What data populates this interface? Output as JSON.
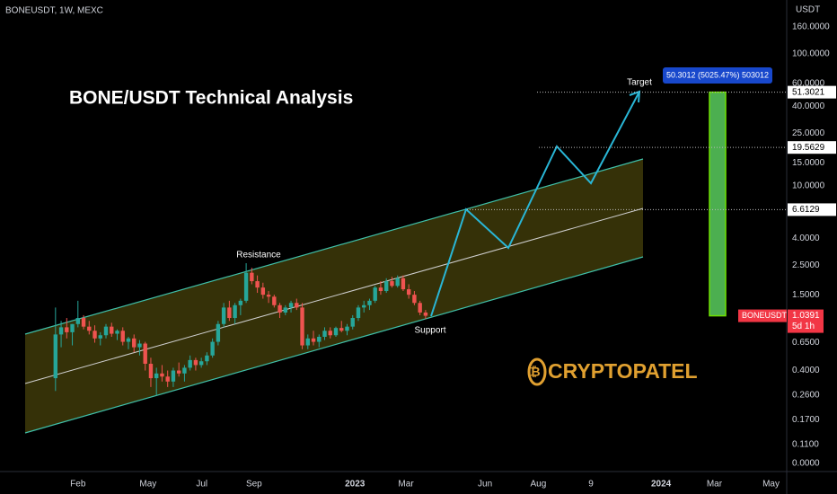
{
  "chart_data": {
    "type": "candlestick",
    "header": "BONEUSDT, 1W, MEXC",
    "title": "BONE/USDT Technical Analysis",
    "currency": "USDT",
    "log_scale": true,
    "up_color": "#26a69a",
    "down_color": "#ef5350",
    "ylim": [
      0.0687,
      256
    ],
    "xlim": [
      -9.9,
      130.4
    ],
    "yticks": [
      {
        "value": 160,
        "label": "160.0000"
      },
      {
        "value": 100,
        "label": "100.0000"
      },
      {
        "value": 60,
        "label": "60.0000"
      },
      {
        "value": 40,
        "label": "40.0000"
      },
      {
        "value": 25,
        "label": "25.0000"
      },
      {
        "value": 15,
        "label": "15.0000"
      },
      {
        "value": 10,
        "label": "10.0000"
      },
      {
        "value": 4,
        "label": "4.0000"
      },
      {
        "value": 2.5,
        "label": "2.5000"
      },
      {
        "value": 1.5,
        "label": "1.5000"
      },
      {
        "value": 0.65,
        "label": "0.6500"
      },
      {
        "value": 0.4,
        "label": "0.4000"
      },
      {
        "value": 0.26,
        "label": "0.2600"
      },
      {
        "value": 0.17,
        "label": "0.1700"
      },
      {
        "value": 0.11,
        "label": "0.1100"
      }
    ],
    "axis_floor_label": "0.0000",
    "xticks": [
      {
        "value": 4.0,
        "label": "Feb"
      },
      {
        "value": 16.5,
        "label": "May"
      },
      {
        "value": 26.1,
        "label": "Jul"
      },
      {
        "value": 35.4,
        "label": "Sep"
      },
      {
        "value": 53.4,
        "label": "2023"
      },
      {
        "value": 62.5,
        "label": "Mar"
      },
      {
        "value": 76.6,
        "label": "Jun"
      },
      {
        "value": 86.1,
        "label": "Aug"
      },
      {
        "value": 95.5,
        "label": "9"
      },
      {
        "value": 108,
        "label": "2024"
      },
      {
        "value": 117.5,
        "label": "Mar"
      },
      {
        "value": 127.6,
        "label": "May"
      }
    ],
    "ohlc": [
      [
        0.35,
        1.2,
        0.28,
        0.75
      ],
      [
        0.75,
        0.95,
        0.6,
        0.85
      ],
      [
        0.85,
        1.0,
        0.7,
        0.78
      ],
      [
        0.78,
        0.9,
        0.62,
        0.9
      ],
      [
        0.9,
        1.35,
        0.85,
        1.0
      ],
      [
        1.0,
        1.05,
        0.82,
        0.86
      ],
      [
        0.86,
        0.95,
        0.75,
        0.8
      ],
      [
        0.8,
        0.88,
        0.65,
        0.7
      ],
      [
        0.7,
        0.78,
        0.62,
        0.74
      ],
      [
        0.74,
        0.9,
        0.7,
        0.86
      ],
      [
        0.86,
        0.92,
        0.72,
        0.76
      ],
      [
        0.76,
        0.82,
        0.68,
        0.8
      ],
      [
        0.8,
        0.85,
        0.62,
        0.66
      ],
      [
        0.66,
        0.72,
        0.58,
        0.7
      ],
      [
        0.7,
        0.75,
        0.55,
        0.6
      ],
      [
        0.6,
        0.68,
        0.52,
        0.64
      ],
      [
        0.64,
        0.66,
        0.4,
        0.45
      ],
      [
        0.45,
        0.5,
        0.3,
        0.35
      ],
      [
        0.35,
        0.42,
        0.26,
        0.38
      ],
      [
        0.38,
        0.44,
        0.33,
        0.36
      ],
      [
        0.36,
        0.4,
        0.3,
        0.33
      ],
      [
        0.33,
        0.42,
        0.3,
        0.4
      ],
      [
        0.4,
        0.46,
        0.36,
        0.38
      ],
      [
        0.38,
        0.44,
        0.33,
        0.42
      ],
      [
        0.42,
        0.52,
        0.4,
        0.48
      ],
      [
        0.48,
        0.5,
        0.4,
        0.44
      ],
      [
        0.44,
        0.5,
        0.42,
        0.47
      ],
      [
        0.47,
        0.55,
        0.44,
        0.52
      ],
      [
        0.52,
        0.7,
        0.5,
        0.66
      ],
      [
        0.66,
        0.95,
        0.62,
        0.9
      ],
      [
        0.9,
        1.3,
        0.85,
        1.2
      ],
      [
        1.2,
        1.35,
        0.95,
        1.0
      ],
      [
        1.0,
        1.3,
        0.9,
        1.25
      ],
      [
        1.25,
        1.4,
        1.05,
        1.35
      ],
      [
        1.35,
        2.6,
        1.3,
        2.2
      ],
      [
        2.2,
        2.4,
        1.8,
        1.9
      ],
      [
        1.9,
        2.1,
        1.55,
        1.7
      ],
      [
        1.7,
        1.85,
        1.4,
        1.5
      ],
      [
        1.5,
        1.6,
        1.3,
        1.45
      ],
      [
        1.45,
        1.5,
        1.2,
        1.25
      ],
      [
        1.25,
        1.3,
        1.0,
        1.1
      ],
      [
        1.1,
        1.25,
        1.05,
        1.2
      ],
      [
        1.2,
        1.35,
        1.1,
        1.3
      ],
      [
        1.3,
        1.4,
        1.15,
        1.2
      ],
      [
        1.2,
        1.3,
        0.58,
        0.62
      ],
      [
        0.62,
        0.75,
        0.58,
        0.7
      ],
      [
        0.7,
        0.8,
        0.62,
        0.66
      ],
      [
        0.66,
        0.75,
        0.6,
        0.72
      ],
      [
        0.72,
        0.85,
        0.68,
        0.8
      ],
      [
        0.8,
        0.85,
        0.7,
        0.74
      ],
      [
        0.74,
        0.86,
        0.72,
        0.84
      ],
      [
        0.84,
        0.95,
        0.78,
        0.8
      ],
      [
        0.8,
        0.9,
        0.74,
        0.86
      ],
      [
        0.86,
        1.05,
        0.82,
        1.0
      ],
      [
        1.0,
        1.25,
        0.95,
        1.2
      ],
      [
        1.2,
        1.35,
        1.1,
        1.25
      ],
      [
        1.25,
        1.4,
        1.15,
        1.35
      ],
      [
        1.35,
        1.75,
        1.3,
        1.7
      ],
      [
        1.7,
        1.9,
        1.5,
        1.6
      ],
      [
        1.6,
        2.0,
        1.55,
        1.9
      ],
      [
        1.9,
        2.05,
        1.7,
        1.75
      ],
      [
        1.75,
        2.1,
        1.7,
        2.0
      ],
      [
        2.0,
        2.1,
        1.6,
        1.65
      ],
      [
        1.65,
        1.8,
        1.4,
        1.5
      ],
      [
        1.5,
        1.6,
        1.25,
        1.3
      ],
      [
        1.3,
        1.35,
        1.05,
        1.1
      ],
      [
        1.1,
        1.15,
        0.98,
        1.0391
      ]
    ],
    "levels": [
      51.3021,
      19.5629,
      6.6129
    ],
    "last_price": {
      "symbol": "BONEUSDT",
      "value": 1.0391,
      "countdown": "5d 1h"
    },
    "measure_label": "50.3012 (5025.47%) 503012",
    "annotations": {
      "resistance": "Resistance",
      "support": "Support",
      "target": "Target"
    },
    "watermark": "CRYPTOPATEL"
  }
}
